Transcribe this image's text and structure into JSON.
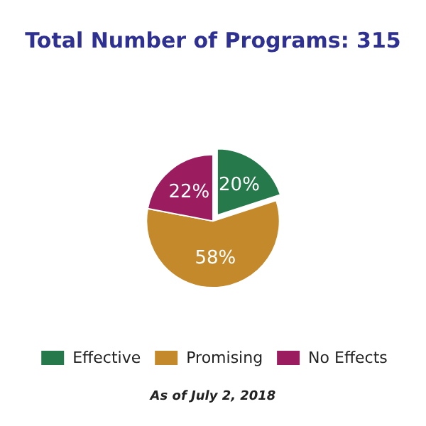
{
  "chart_data": {
    "type": "pie",
    "title": "Total Number of Programs: 315",
    "categories": [
      "Effective",
      "Promising",
      "No Effects"
    ],
    "values": [
      20,
      58,
      22
    ],
    "colors": [
      "#25794a",
      "#c4892a",
      "#9b1c5f"
    ],
    "value_labels": [
      "20%",
      "58%",
      "22%"
    ],
    "legend": "bottom",
    "annotations": [
      "As of July 2, 2018"
    ]
  }
}
